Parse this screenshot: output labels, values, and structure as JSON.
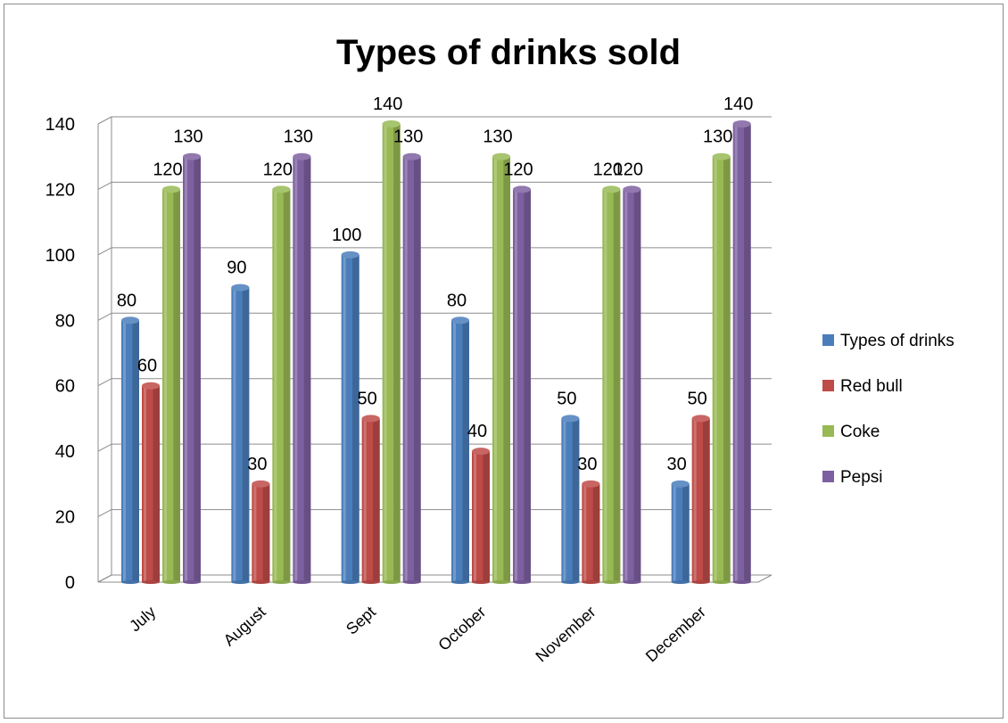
{
  "chart_data": {
    "type": "bar",
    "title": "Types of drinks sold",
    "xlabel": "",
    "ylabel": "",
    "ylim": [
      0,
      140
    ],
    "yticks": [
      0,
      20,
      40,
      60,
      80,
      100,
      120,
      140
    ],
    "grid": true,
    "legend_position": "right",
    "categories": [
      "July",
      "August",
      "Sept",
      "October",
      "November",
      "December"
    ],
    "series": [
      {
        "name": "Types of drinks",
        "color": "#4a7ebb",
        "values": [
          80,
          90,
          100,
          80,
          50,
          30
        ]
      },
      {
        "name": "Red bull",
        "color": "#be4b48",
        "values": [
          60,
          30,
          50,
          40,
          30,
          50
        ]
      },
      {
        "name": "Coke",
        "color": "#98b954",
        "values": [
          120,
          120,
          140,
          130,
          120,
          130
        ]
      },
      {
        "name": "Pepsi",
        "color": "#7d60a0",
        "values": [
          130,
          130,
          130,
          120,
          120,
          140
        ]
      }
    ]
  }
}
